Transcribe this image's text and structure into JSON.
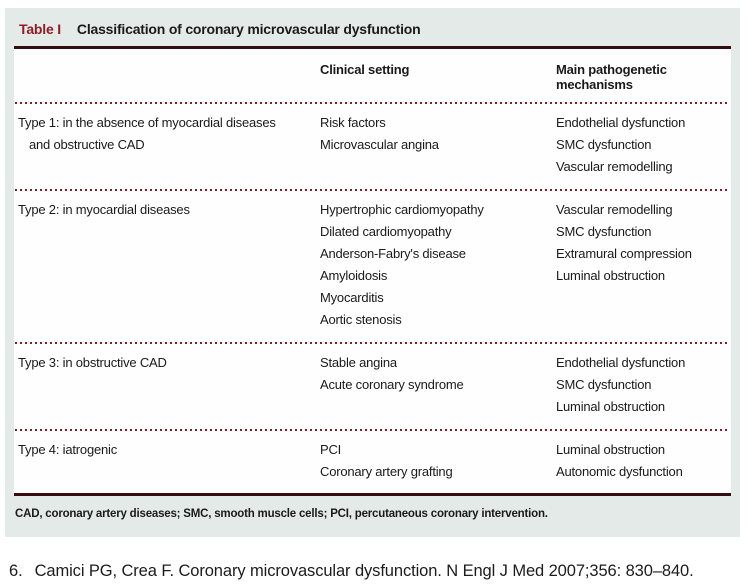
{
  "colors": {
    "accent_red": "#8f1d24",
    "rule_dark": "#330d10",
    "dot_red": "#7d1f27",
    "panel_bg": "#e4eae7",
    "body_bg": "#fefefe",
    "text": "#1a1a1a"
  },
  "table": {
    "label": "Table I",
    "title": "Classification of coronary microvascular dysfunction",
    "headers": {
      "type": "",
      "clinical": "Clinical setting",
      "mechanisms": "Main pathogenetic mechanisms"
    },
    "rows": [
      {
        "type": [
          "Type 1: in the absence of myocardial diseases",
          "and obstructive CAD"
        ],
        "clinical": [
          "Risk factors",
          "Microvascular angina"
        ],
        "mechanisms": [
          "Endothelial dysfunction",
          "SMC dysfunction",
          "Vascular remodelling"
        ]
      },
      {
        "type": [
          "Type 2: in myocardial diseases"
        ],
        "clinical": [
          "Hypertrophic cardiomyopathy",
          "Dilated cardiomyopathy",
          "Anderson-Fabry's disease",
          "Amyloidosis",
          "Myocarditis",
          "Aortic stenosis"
        ],
        "mechanisms": [
          "Vascular remodelling",
          "SMC dysfunction",
          "Extramural compression",
          "Luminal obstruction"
        ]
      },
      {
        "type": [
          "Type 3: in obstructive CAD"
        ],
        "clinical": [
          "Stable angina",
          "Acute coronary syndrome"
        ],
        "mechanisms": [
          "Endothelial dysfunction",
          "SMC dysfunction",
          "Luminal obstruction"
        ]
      },
      {
        "type": [
          "Type 4: iatrogenic"
        ],
        "clinical": [
          "PCI",
          "Coronary artery grafting"
        ],
        "mechanisms": [
          "Luminal obstruction",
          "Autonomic dysfunction"
        ]
      }
    ],
    "footnote": "CAD, coronary artery diseases; SMC, smooth muscle cells; PCI, percutaneous coronary intervention."
  },
  "citation": {
    "number": "6.",
    "text": "Camici PG, Crea F. Coronary microvascular dysfunction. N Engl J Med 2007;356: 830–840."
  }
}
